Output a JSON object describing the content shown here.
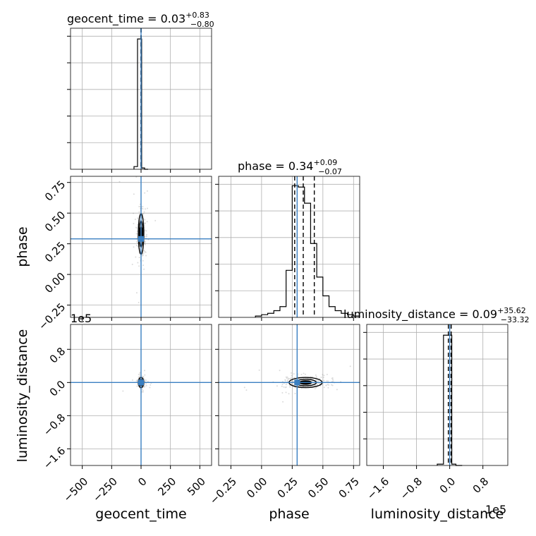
{
  "chart_data": {
    "type": "corner",
    "parameters": [
      "geocent_time",
      "phase",
      "luminosity_distance"
    ],
    "axis_labels": {
      "geocent_time": "geocent_time",
      "phase": "phase",
      "luminosity_distance": "luminosity_distance"
    },
    "ranges": {
      "geocent_time": [
        -600,
        600
      ],
      "phase": [
        -0.35,
        0.8
      ],
      "luminosity_distance": [
        -200000,
        140000
      ]
    },
    "ticks": {
      "geocent_time": [
        -500,
        -250,
        0,
        250,
        500
      ],
      "phase": [
        -0.25,
        0.0,
        0.25,
        0.5,
        0.75
      ],
      "luminosity_distance": [
        -160000,
        -80000,
        0,
        80000
      ]
    },
    "tick_labels": {
      "geocent_time": [
        "−500",
        "−250",
        "0",
        "250",
        "500"
      ],
      "phase": [
        "−0.25",
        "0.00",
        "0.25",
        "0.50",
        "0.75"
      ],
      "luminosity_distance": [
        "−1.6",
        "−0.8",
        "0.0",
        "0.8"
      ]
    },
    "offset_text": {
      "luminosity_distance": "1e5"
    },
    "injection": {
      "geocent_time": 0,
      "phase": 0.29,
      "luminosity_distance": 0
    },
    "titles": [
      {
        "param": "geocent_time",
        "name": "geocent_time",
        "median": "0.03",
        "plus": "+0.83",
        "minus": "−0.80"
      },
      {
        "param": "phase",
        "name": "phase",
        "median": "0.34",
        "plus": "+0.09",
        "minus": "−0.07"
      },
      {
        "param": "luminosity_distance",
        "name": "luminosity_distance",
        "median": "0.09",
        "plus": "+35.62",
        "minus": "−33.32"
      }
    ],
    "quantile_lines": {
      "geocent_time": [
        -0.77,
        0.03,
        0.86
      ],
      "phase": [
        0.27,
        0.34,
        0.43
      ],
      "luminosity_distance": [
        -33.23,
        0.09,
        35.71
      ]
    },
    "histograms": {
      "geocent_time": {
        "bin_edges": [
          -60,
          -30,
          -5,
          5,
          30,
          60
        ],
        "counts": [
          0.02,
          0.97,
          0.97,
          0.01,
          0.0
        ],
        "ymax": 1.0
      },
      "phase": {
        "bin_edges": [
          -0.05,
          0.0,
          0.05,
          0.1,
          0.15,
          0.2,
          0.25,
          0.3,
          0.35,
          0.4,
          0.45,
          0.5,
          0.55,
          0.6,
          0.65,
          0.7,
          0.75,
          0.8
        ],
        "counts": [
          0.01,
          0.02,
          0.03,
          0.05,
          0.08,
          0.35,
          0.98,
          0.97,
          0.85,
          0.55,
          0.3,
          0.16,
          0.08,
          0.05,
          0.03,
          0.02,
          0.01
        ],
        "ymax": 1.0
      },
      "luminosity_distance": {
        "bin_edges": [
          -30000,
          -15000,
          -5000,
          5000,
          15000,
          30000
        ],
        "counts": [
          0.01,
          0.97,
          0.97,
          0.01,
          0.0
        ],
        "ymax": 1.0
      }
    },
    "grid": true,
    "colors": {
      "injection": "#3a7fc1",
      "histogram": "#000000",
      "grid": "#b0b0b0",
      "samples": "#9a9a9a",
      "contours": "#000000"
    }
  }
}
